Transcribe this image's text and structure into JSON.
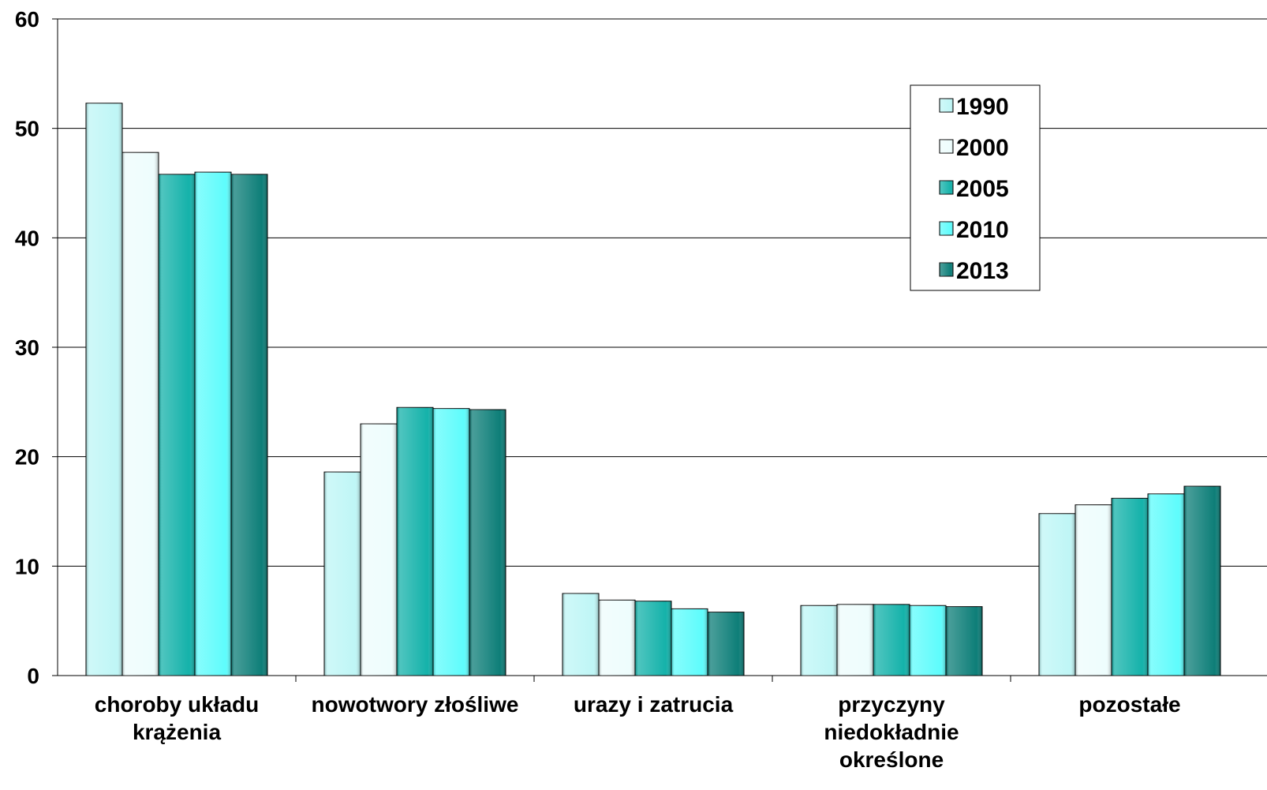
{
  "chart_data": {
    "type": "bar",
    "categories": [
      [
        "choroby układu",
        "krążenia"
      ],
      [
        "nowotwory złośliwe"
      ],
      [
        "urazy i zatrucia"
      ],
      [
        "przyczyny",
        "niedokładnie",
        "określone"
      ],
      [
        "pozostałe"
      ]
    ],
    "series": [
      {
        "name": "1990",
        "color": "#bff6f6",
        "values": [
          52.3,
          18.6,
          7.5,
          6.4,
          14.8
        ]
      },
      {
        "name": "2000",
        "color": "#eefdfd",
        "values": [
          47.8,
          23.0,
          6.9,
          6.5,
          15.6
        ]
      },
      {
        "name": "2005",
        "color": "#14b2aa",
        "values": [
          45.8,
          24.5,
          6.8,
          6.5,
          16.2
        ]
      },
      {
        "name": "2010",
        "color": "#5efcfc",
        "values": [
          46.0,
          24.4,
          6.1,
          6.4,
          16.6
        ]
      },
      {
        "name": "2013",
        "color": "#0d7e78",
        "values": [
          45.8,
          24.3,
          5.8,
          6.3,
          17.3
        ]
      }
    ],
    "yticks": [
      0,
      10,
      20,
      30,
      40,
      50,
      60
    ],
    "ylim": [
      0,
      60
    ],
    "grid": true,
    "legend_position": "top-right"
  }
}
